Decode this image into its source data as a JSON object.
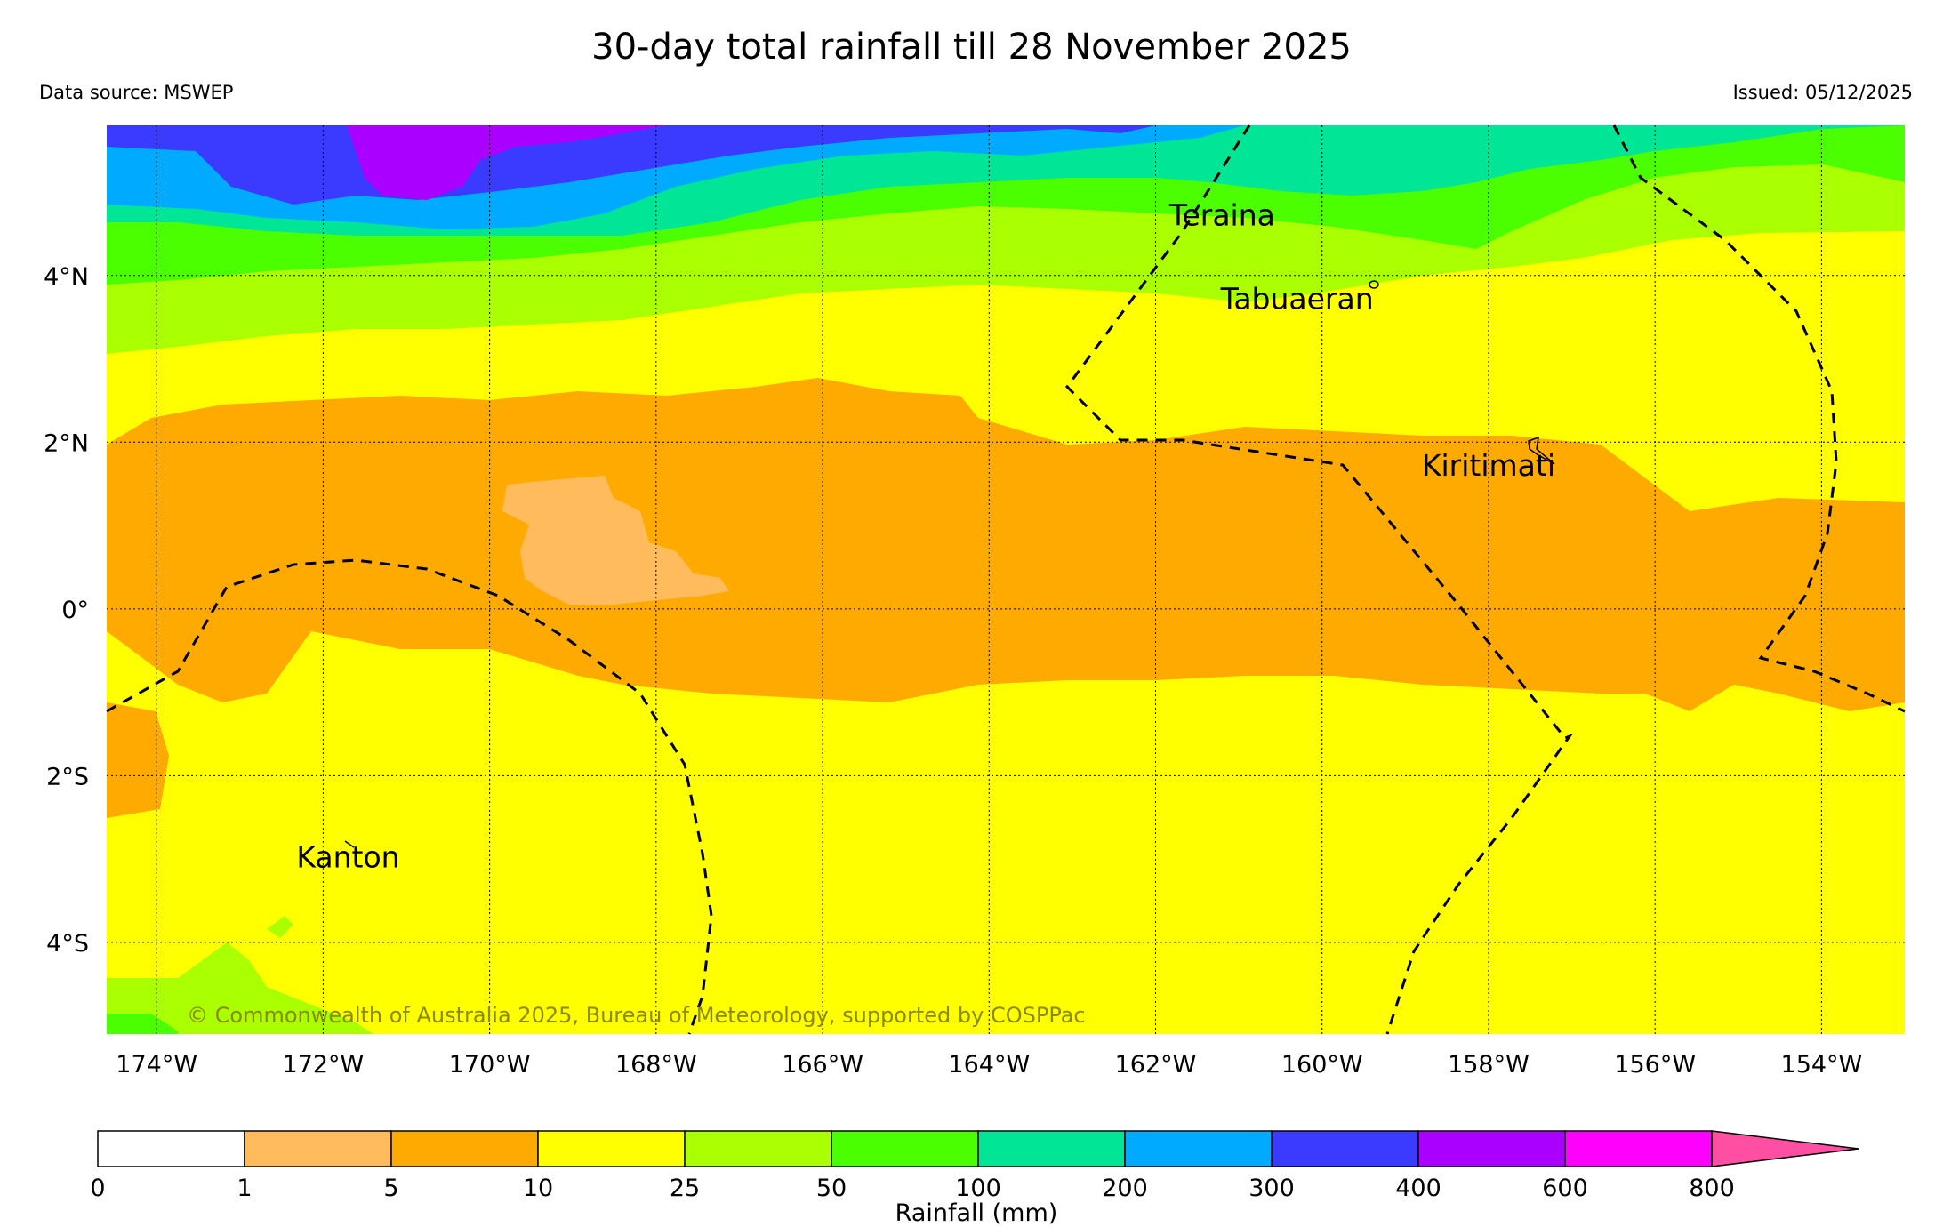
{
  "title": "30-day total rainfall till 28 November 2025",
  "data_source": "Data source: MSWEP",
  "issued": "Issued: 05/12/2025",
  "copyright": "© Commonwealth of Australia 2025, Bureau of Meteorology, supported by COSPPac",
  "map": {
    "lon_range": [
      -174.6,
      -153.0
    ],
    "lat_range": [
      -5.1,
      5.8
    ],
    "lon_ticks": [
      {
        "value": -174,
        "label": "174°W"
      },
      {
        "value": -172,
        "label": "172°W"
      },
      {
        "value": -170,
        "label": "170°W"
      },
      {
        "value": -168,
        "label": "168°W"
      },
      {
        "value": -166,
        "label": "166°W"
      },
      {
        "value": -164,
        "label": "164°W"
      },
      {
        "value": -162,
        "label": "162°W"
      },
      {
        "value": -160,
        "label": "160°W"
      },
      {
        "value": -158,
        "label": "158°W"
      },
      {
        "value": -156,
        "label": "156°W"
      },
      {
        "value": -154,
        "label": "154°W"
      }
    ],
    "lat_ticks": [
      {
        "value": 4,
        "label": "4°N"
      },
      {
        "value": 2,
        "label": "2°N"
      },
      {
        "value": 0,
        "label": "0°"
      },
      {
        "value": -2,
        "label": "2°S"
      },
      {
        "value": -4,
        "label": "4°S"
      }
    ],
    "places": [
      {
        "name": "Teraina",
        "lon": -161.2,
        "lat": 4.6
      },
      {
        "name": "Tabuaeran",
        "lon": -160.3,
        "lat": 3.6
      },
      {
        "name": "Kiritimati",
        "lon": -158.0,
        "lat": 1.6
      },
      {
        "name": "Kanton",
        "lon": -171.7,
        "lat": -3.1
      }
    ]
  },
  "legend": {
    "label": "Rainfall (mm)",
    "ticks": [
      "0",
      "1",
      "5",
      "10",
      "25",
      "50",
      "100",
      "200",
      "300",
      "400",
      "600",
      "800"
    ],
    "colors": [
      "#ffffff",
      "#ffbb5c",
      "#ffaa00",
      "#ffff00",
      "#aaff00",
      "#4bff00",
      "#00e696",
      "#00aaff",
      "#3b3bff",
      "#aa00ff",
      "#ff00ff",
      "#ff4fa3"
    ]
  }
}
